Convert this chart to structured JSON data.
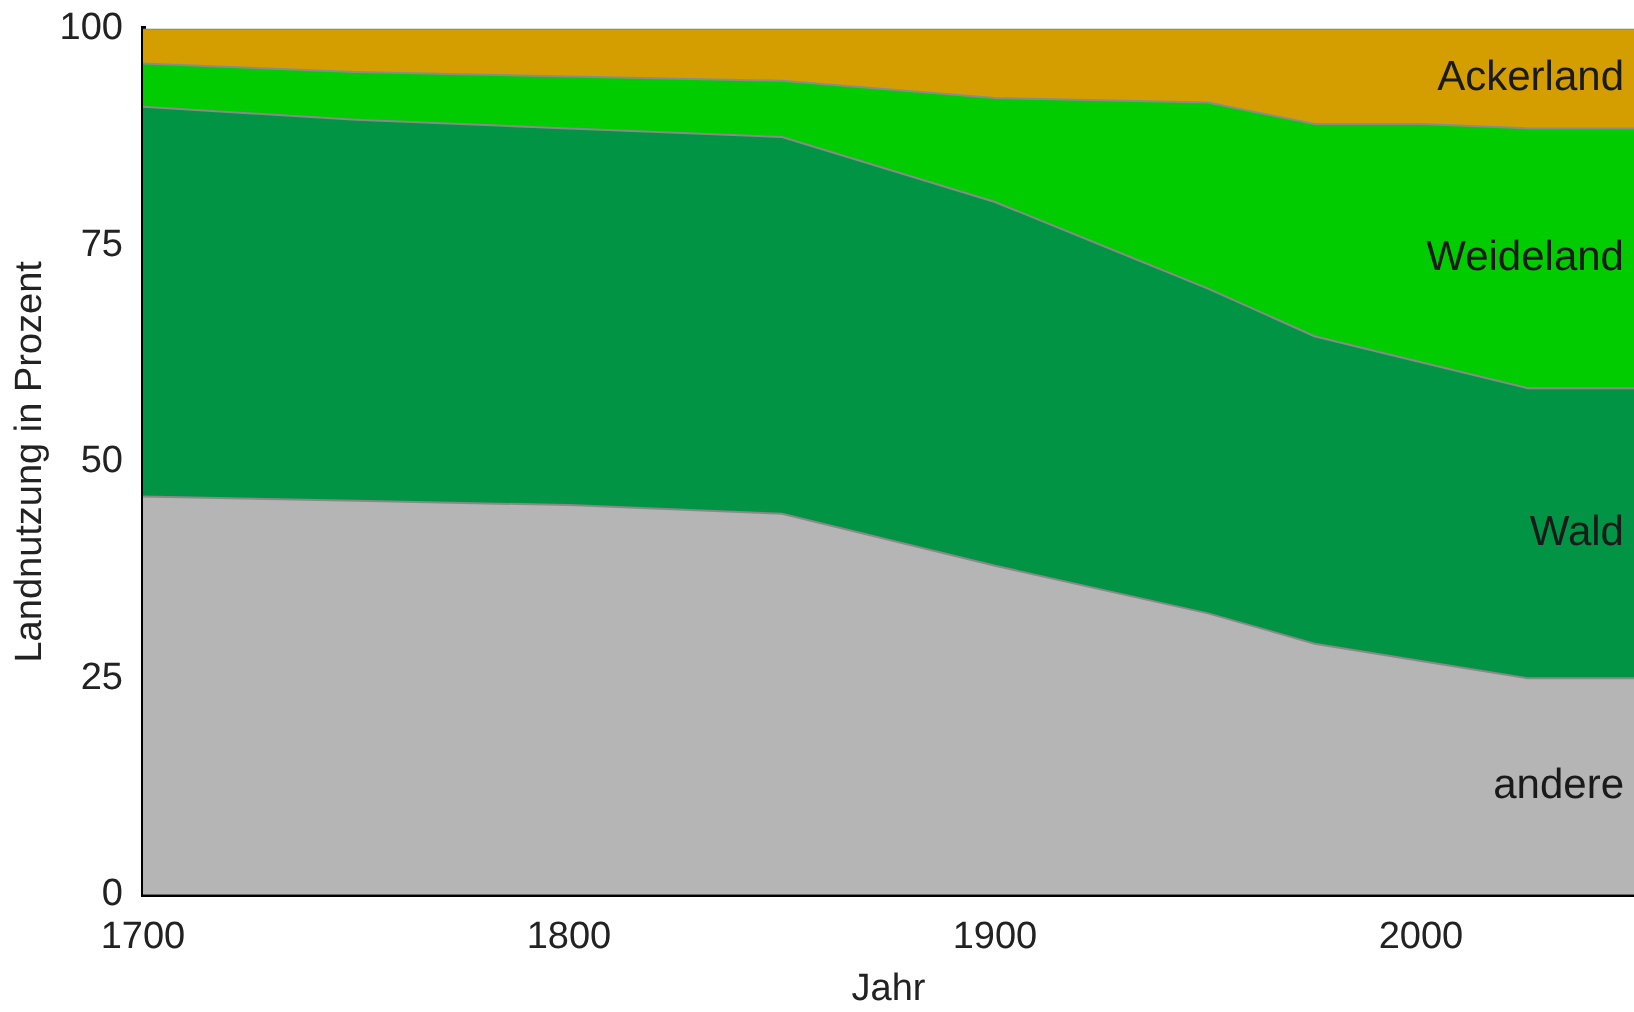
{
  "chart_data": {
    "type": "area",
    "stacked": true,
    "xlabel": "Jahr",
    "ylabel": "Landnutzung in Prozent",
    "x": [
      1700,
      1750,
      1800,
      1850,
      1900,
      1950,
      1975,
      2000,
      2025,
      2050
    ],
    "series": [
      {
        "name": "andere",
        "color": "#b5b5b5",
        "values": [
          46,
          45.5,
          45,
          44,
          38,
          32.5,
          29,
          27,
          25,
          25
        ]
      },
      {
        "name": "Wald",
        "color": "#009444",
        "values": [
          45,
          44,
          43.5,
          43.5,
          42,
          37.5,
          35.5,
          34.5,
          33.5,
          33.5
        ]
      },
      {
        "name": "Weideland",
        "color": "#00cc00",
        "values": [
          5,
          5.5,
          6,
          6.5,
          12,
          21.5,
          24.5,
          27.5,
          30,
          30
        ]
      },
      {
        "name": "Ackerland",
        "color": "#d49e00",
        "values": [
          4,
          5,
          5.5,
          6,
          8,
          8.5,
          11,
          11,
          11.5,
          11.5
        ]
      }
    ],
    "xlim": [
      1700,
      2050
    ],
    "xticks": [
      1700,
      1800,
      1900,
      2000
    ],
    "ylim": [
      0,
      100
    ],
    "yticks": [
      0,
      25,
      50,
      75,
      100
    ],
    "grid": false,
    "legend": false
  }
}
